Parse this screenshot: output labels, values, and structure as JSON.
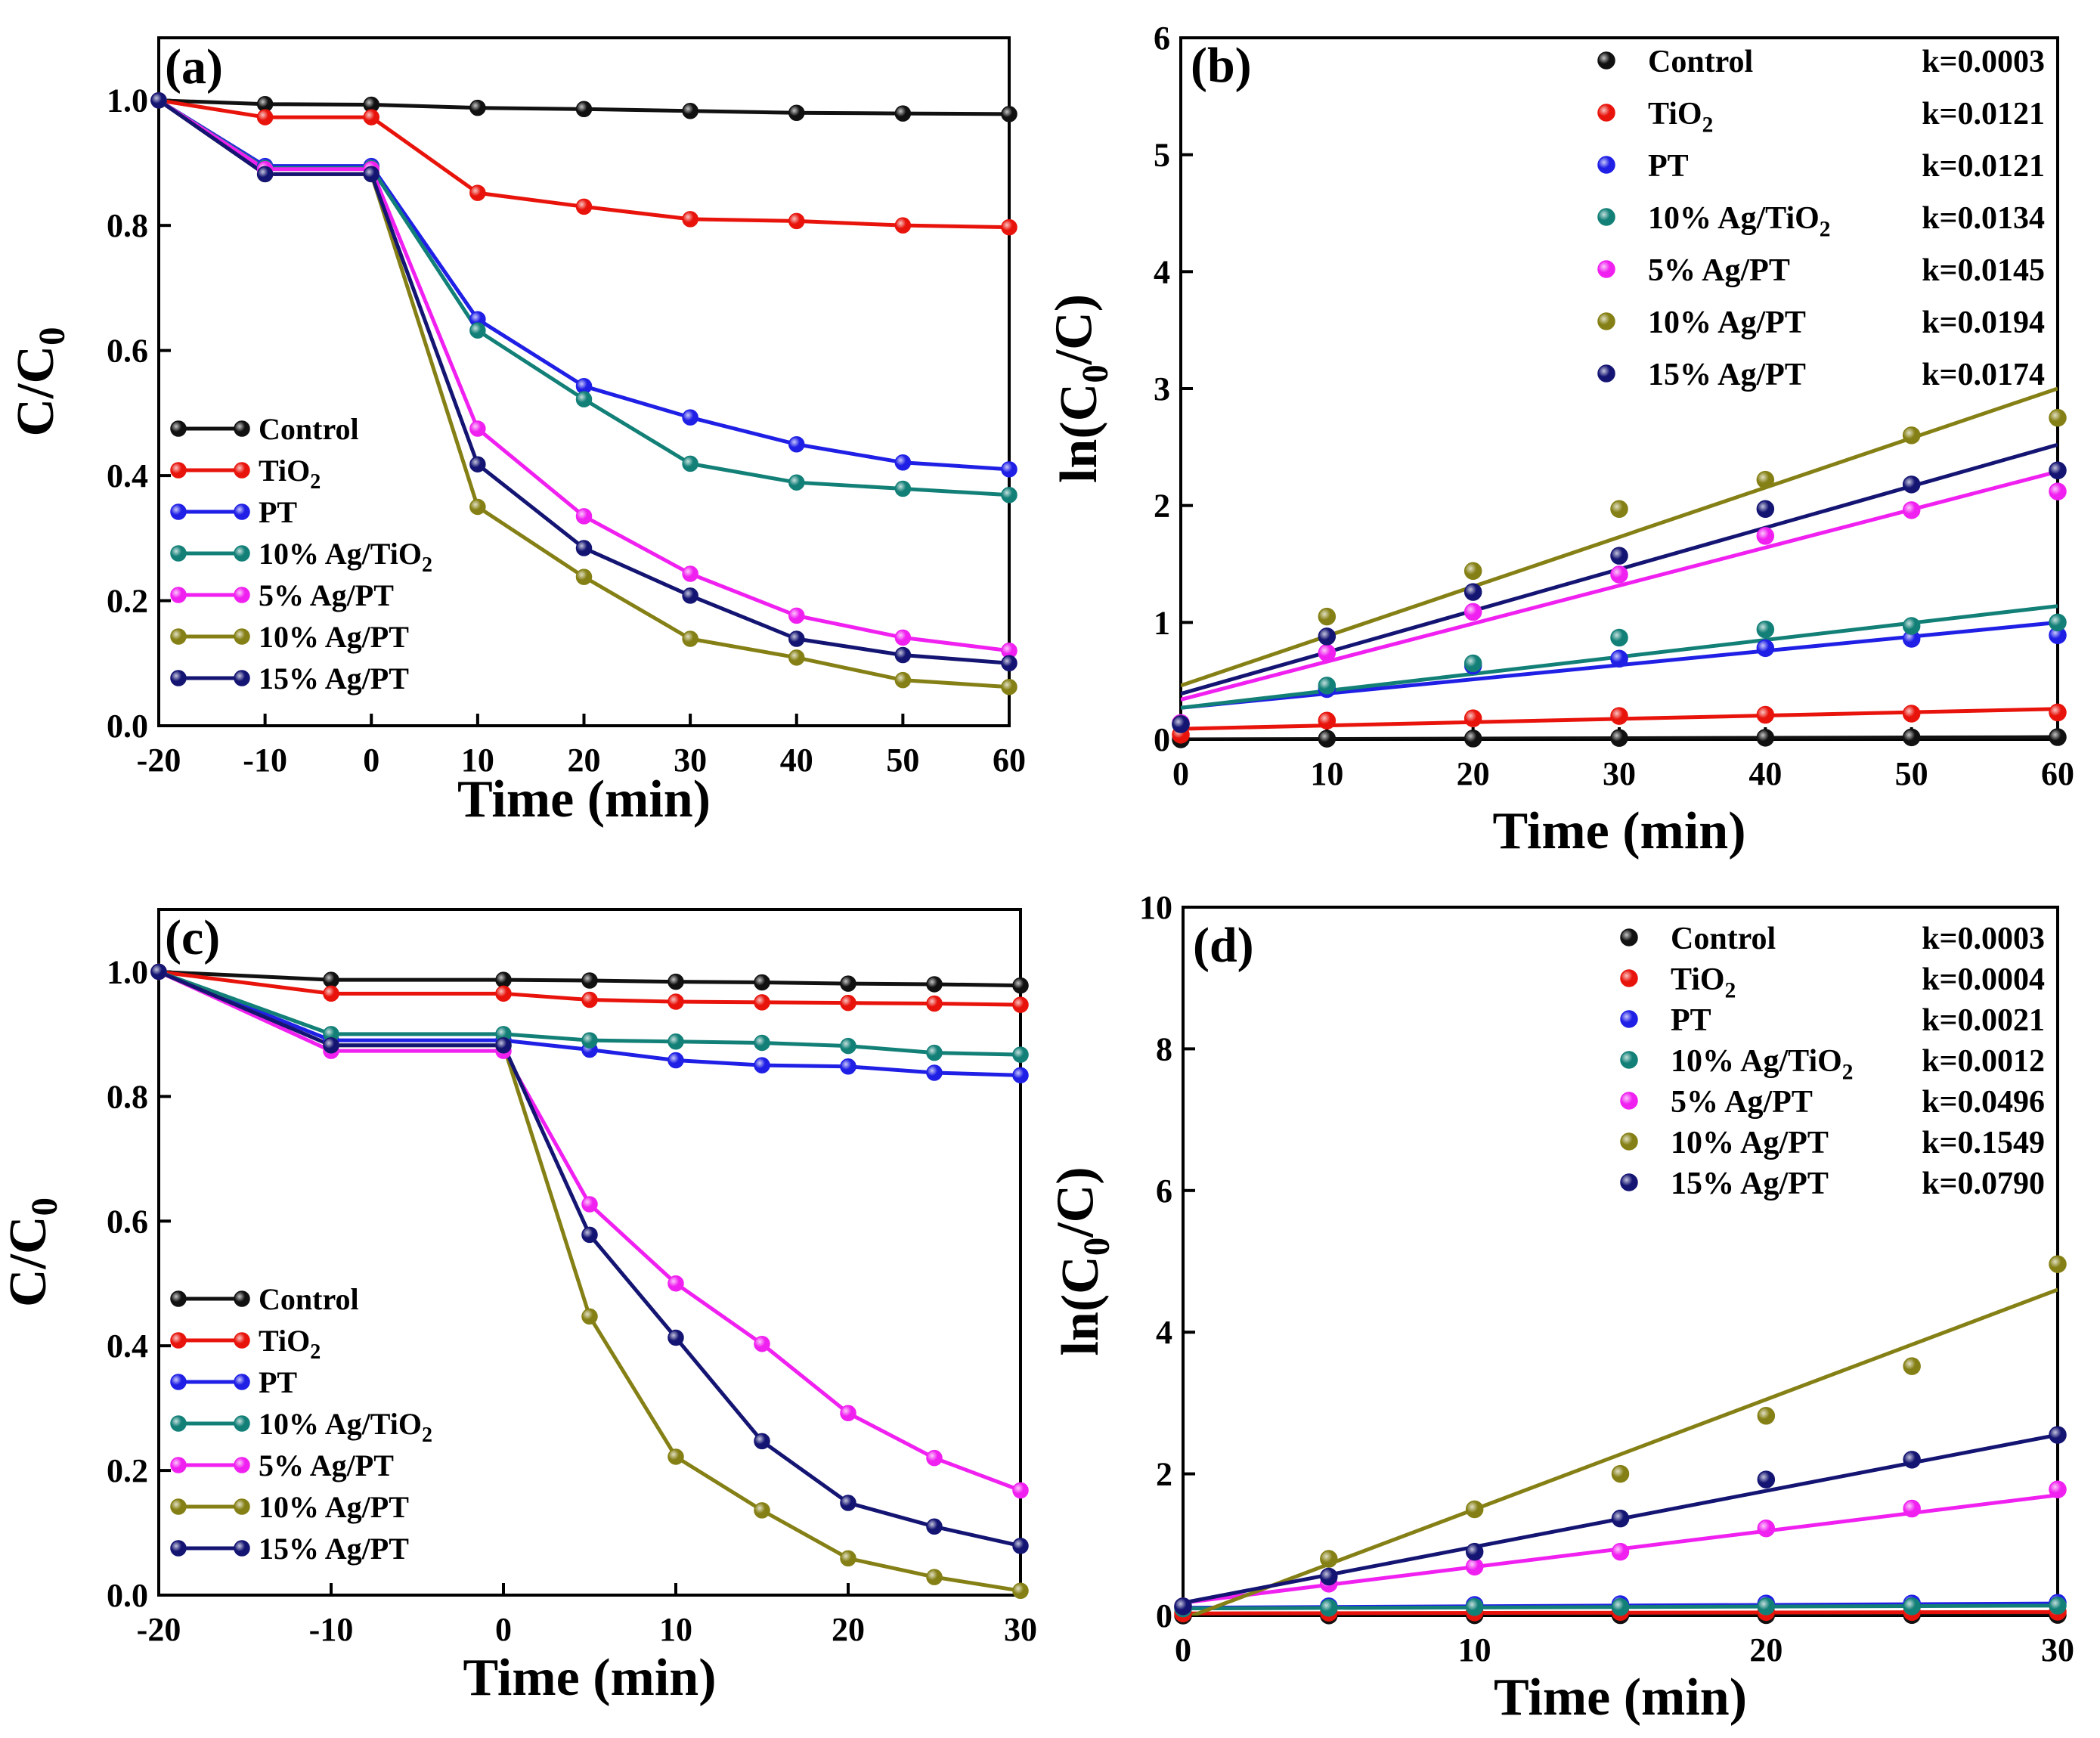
{
  "figure": {
    "series_colors": {
      "Control": "#111111",
      "TiO2": "#e8140c",
      "PT": "#1f1fe6",
      "10% Ag/TiO2": "#138078",
      "5% Ag/PT": "#f020f0",
      "10% Ag/PT": "#858015",
      "15% Ag/PT": "#141473"
    }
  },
  "chart_data": [
    {
      "id": "a",
      "panel_label": "(a)",
      "type": "line",
      "xlabel": "Time (min)",
      "ylabel": "C/C0",
      "xlim": [
        -20,
        60
      ],
      "ylim": [
        0,
        1.1
      ],
      "xticks": [
        -20,
        -10,
        0,
        10,
        20,
        30,
        40,
        50,
        60
      ],
      "yticks": [
        0.0,
        0.2,
        0.4,
        0.6,
        0.8,
        1.0
      ],
      "ytick_labels": [
        "0.0",
        "0.2",
        "0.4",
        "0.6",
        "0.8",
        "1.0"
      ],
      "x": [
        -20,
        -10,
        0,
        10,
        20,
        30,
        40,
        50,
        60
      ],
      "legend_position": "bottom-left",
      "series": [
        {
          "name": "Control",
          "label": "Control",
          "values": [
            1.0,
            0.994,
            0.993,
            0.988,
            0.986,
            0.983,
            0.98,
            0.979,
            0.978
          ]
        },
        {
          "name": "TiO2",
          "label": "TiO",
          "subscript": "2",
          "values": [
            1.0,
            0.973,
            0.973,
            0.852,
            0.83,
            0.81,
            0.807,
            0.8,
            0.797
          ]
        },
        {
          "name": "PT",
          "label": "PT",
          "values": [
            1.0,
            0.895,
            0.895,
            0.65,
            0.543,
            0.493,
            0.45,
            0.421,
            0.41
          ]
        },
        {
          "name": "10% Ag/TiO2",
          "label": "10% Ag/TiO",
          "subscript": "2",
          "values": [
            1.0,
            0.892,
            0.892,
            0.632,
            0.522,
            0.419,
            0.389,
            0.379,
            0.369
          ]
        },
        {
          "name": "5% Ag/PT",
          "label": "5%   Ag/PT",
          "values": [
            1.0,
            0.89,
            0.89,
            0.475,
            0.335,
            0.243,
            0.176,
            0.141,
            0.12
          ]
        },
        {
          "name": "10% Ag/PT",
          "label": "10% Ag/PT",
          "values": [
            1.0,
            0.882,
            0.882,
            0.35,
            0.238,
            0.139,
            0.109,
            0.073,
            0.062
          ]
        },
        {
          "name": "15% Ag/PT",
          "label": "15% Ag/PT",
          "values": [
            1.0,
            0.882,
            0.882,
            0.418,
            0.284,
            0.208,
            0.139,
            0.113,
            0.1
          ]
        }
      ]
    },
    {
      "id": "b",
      "panel_label": "(b)",
      "type": "scatter",
      "xlabel": "Time (min)",
      "ylabel": "ln(C0/C)",
      "xlim": [
        0,
        60
      ],
      "ylim": [
        0,
        6
      ],
      "xticks": [
        0,
        10,
        20,
        30,
        40,
        50,
        60
      ],
      "yticks": [
        0,
        1,
        2,
        3,
        4,
        5,
        6
      ],
      "ytick_labels": [
        "0",
        "1",
        "2",
        "3",
        "4",
        "5",
        "6"
      ],
      "x": [
        0,
        10,
        20,
        30,
        40,
        50,
        60
      ],
      "legend_position": "top-right",
      "series": [
        {
          "name": "Control",
          "label": "Control",
          "k_label": "k=0.0003",
          "values": [
            0.0,
            0.006,
            0.007,
            0.012,
            0.014,
            0.017,
            0.019
          ],
          "fit": [
            0.0,
            0.019
          ]
        },
        {
          "name": "TiO2",
          "label": "TiO",
          "subscript": "2",
          "k_label": "k=0.0121",
          "values": [
            0.04,
            0.16,
            0.18,
            0.2,
            0.21,
            0.22,
            0.23
          ],
          "fit": [
            0.09,
            0.26
          ]
        },
        {
          "name": "PT",
          "label": "PT",
          "k_label": "k=0.0121",
          "values": [
            0.13,
            0.43,
            0.63,
            0.69,
            0.78,
            0.86,
            0.89
          ],
          "fit": [
            0.27,
            1.0
          ]
        },
        {
          "name": "10% Ag/TiO2",
          "label": "10% Ag/TiO",
          "subscript": "2",
          "k_label": "k=0.0134",
          "values": [
            0.13,
            0.46,
            0.65,
            0.87,
            0.94,
            0.97,
            1.0
          ],
          "fit": [
            0.27,
            1.14
          ]
        },
        {
          "name": "5% Ag/PT",
          "label": "5%   Ag/PT",
          "k_label": "k=0.0145",
          "values": [
            0.14,
            0.74,
            1.09,
            1.41,
            1.74,
            1.96,
            2.12
          ],
          "fit": [
            0.34,
            2.29
          ]
        },
        {
          "name": "10% Ag/PT",
          "label": "10% Ag/PT",
          "k_label": "k=0.0194",
          "values": [
            0.13,
            1.05,
            1.44,
            1.97,
            2.22,
            2.6,
            2.75
          ],
          "fit": [
            0.46,
            3.0
          ]
        },
        {
          "name": "15% Ag/PT",
          "label": "15% Ag/PT",
          "k_label": "k=0.0174",
          "values": [
            0.13,
            0.88,
            1.26,
            1.57,
            1.97,
            2.18,
            2.3
          ],
          "fit": [
            0.39,
            2.52
          ]
        }
      ]
    },
    {
      "id": "c",
      "panel_label": "(c)",
      "type": "line",
      "xlabel": "Time (min)",
      "ylabel": "C/C0",
      "xlim": [
        -20,
        30
      ],
      "ylim": [
        0,
        1.1
      ],
      "xticks": [
        -20,
        -10,
        0,
        10,
        20,
        30
      ],
      "yticks": [
        0.0,
        0.2,
        0.4,
        0.6,
        0.8,
        1.0
      ],
      "ytick_labels": [
        "0.0",
        "0.2",
        "0.4",
        "0.6",
        "0.8",
        "1.0"
      ],
      "x": [
        -20,
        -10,
        0,
        5,
        10,
        15,
        20,
        25,
        30
      ],
      "legend_position": "bottom-left",
      "series": [
        {
          "name": "Control",
          "label": "Control",
          "values": [
            1.0,
            0.987,
            0.987,
            0.986,
            0.984,
            0.983,
            0.981,
            0.98,
            0.978
          ]
        },
        {
          "name": "TiO2",
          "label": "TiO",
          "subscript": "2",
          "values": [
            1.0,
            0.965,
            0.965,
            0.955,
            0.952,
            0.951,
            0.95,
            0.949,
            0.947
          ]
        },
        {
          "name": "PT",
          "label": "PT",
          "values": [
            1.0,
            0.89,
            0.89,
            0.875,
            0.858,
            0.85,
            0.848,
            0.838,
            0.834
          ]
        },
        {
          "name": "10% Ag/TiO2",
          "label": "10% Ag/TiO",
          "subscript": "2",
          "values": [
            1.0,
            0.9,
            0.9,
            0.89,
            0.888,
            0.886,
            0.881,
            0.87,
            0.867
          ]
        },
        {
          "name": "5% Ag/PT",
          "label": "5%   Ag/PT",
          "values": [
            1.0,
            0.873,
            0.873,
            0.627,
            0.5,
            0.403,
            0.292,
            0.22,
            0.168
          ]
        },
        {
          "name": "10% Ag/PT",
          "label": "10% Ag/PT",
          "values": [
            1.0,
            0.882,
            0.882,
            0.447,
            0.222,
            0.136,
            0.059,
            0.029,
            0.007
          ]
        },
        {
          "name": "15% Ag/PT",
          "label": "15% Ag/PT",
          "values": [
            1.0,
            0.882,
            0.882,
            0.578,
            0.413,
            0.247,
            0.148,
            0.11,
            0.079
          ]
        }
      ]
    },
    {
      "id": "d",
      "panel_label": "(d)",
      "type": "scatter",
      "xlabel": "Time (min)",
      "ylabel": "ln(C0/C)",
      "xlim": [
        0,
        30
      ],
      "ylim": [
        0,
        10
      ],
      "xticks": [
        0,
        10,
        20,
        30
      ],
      "yticks": [
        0,
        2,
        4,
        6,
        8,
        10
      ],
      "ytick_labels": [
        "0",
        "2",
        "4",
        "6",
        "8",
        "10"
      ],
      "x": [
        0,
        5,
        10,
        15,
        20,
        25,
        30
      ],
      "legend_position": "top-right",
      "series": [
        {
          "name": "Control",
          "label": "Control",
          "k_label": "k=0.0003",
          "values": [
            0.0,
            0.002,
            0.004,
            0.005,
            0.006,
            0.007,
            0.009
          ],
          "fit": [
            0.0,
            0.009
          ]
        },
        {
          "name": "TiO2",
          "label": "TiO",
          "subscript": "2",
          "k_label": "k=0.0004",
          "values": [
            0.03,
            0.04,
            0.045,
            0.05,
            0.05,
            0.05,
            0.054
          ],
          "fit": [
            0.03,
            0.05
          ]
        },
        {
          "name": "PT",
          "label": "PT",
          "k_label": "k=0.0021",
          "values": [
            0.12,
            0.13,
            0.15,
            0.16,
            0.17,
            0.17,
            0.18
          ],
          "fit": [
            0.11,
            0.17
          ]
        },
        {
          "name": "10% Ag/TiO2",
          "label": "10% Ag/TiO",
          "subscript": "2",
          "k_label": "k=0.0012",
          "values": [
            0.1,
            0.11,
            0.12,
            0.12,
            0.13,
            0.13,
            0.14
          ],
          "fit": [
            0.1,
            0.14
          ]
        },
        {
          "name": "5% Ag/PT",
          "label": "5%   Ag/PT",
          "k_label": "k=0.0496",
          "values": [
            0.13,
            0.45,
            0.69,
            0.9,
            1.23,
            1.51,
            1.78
          ],
          "fit": [
            0.18,
            1.7
          ]
        },
        {
          "name": "10% Ag/PT",
          "label": "10% Ag/PT",
          "k_label": "k=0.1549",
          "values": [
            0.13,
            0.8,
            1.5,
            2.0,
            2.82,
            3.52,
            4.96
          ],
          "fit": [
            -0.05,
            4.6
          ]
        },
        {
          "name": "15% Ag/PT",
          "label": "15% Ag/PT",
          "k_label": "k=0.0790",
          "values": [
            0.13,
            0.55,
            0.9,
            1.37,
            1.92,
            2.2,
            2.55
          ],
          "fit": [
            0.18,
            2.55
          ]
        }
      ]
    }
  ]
}
